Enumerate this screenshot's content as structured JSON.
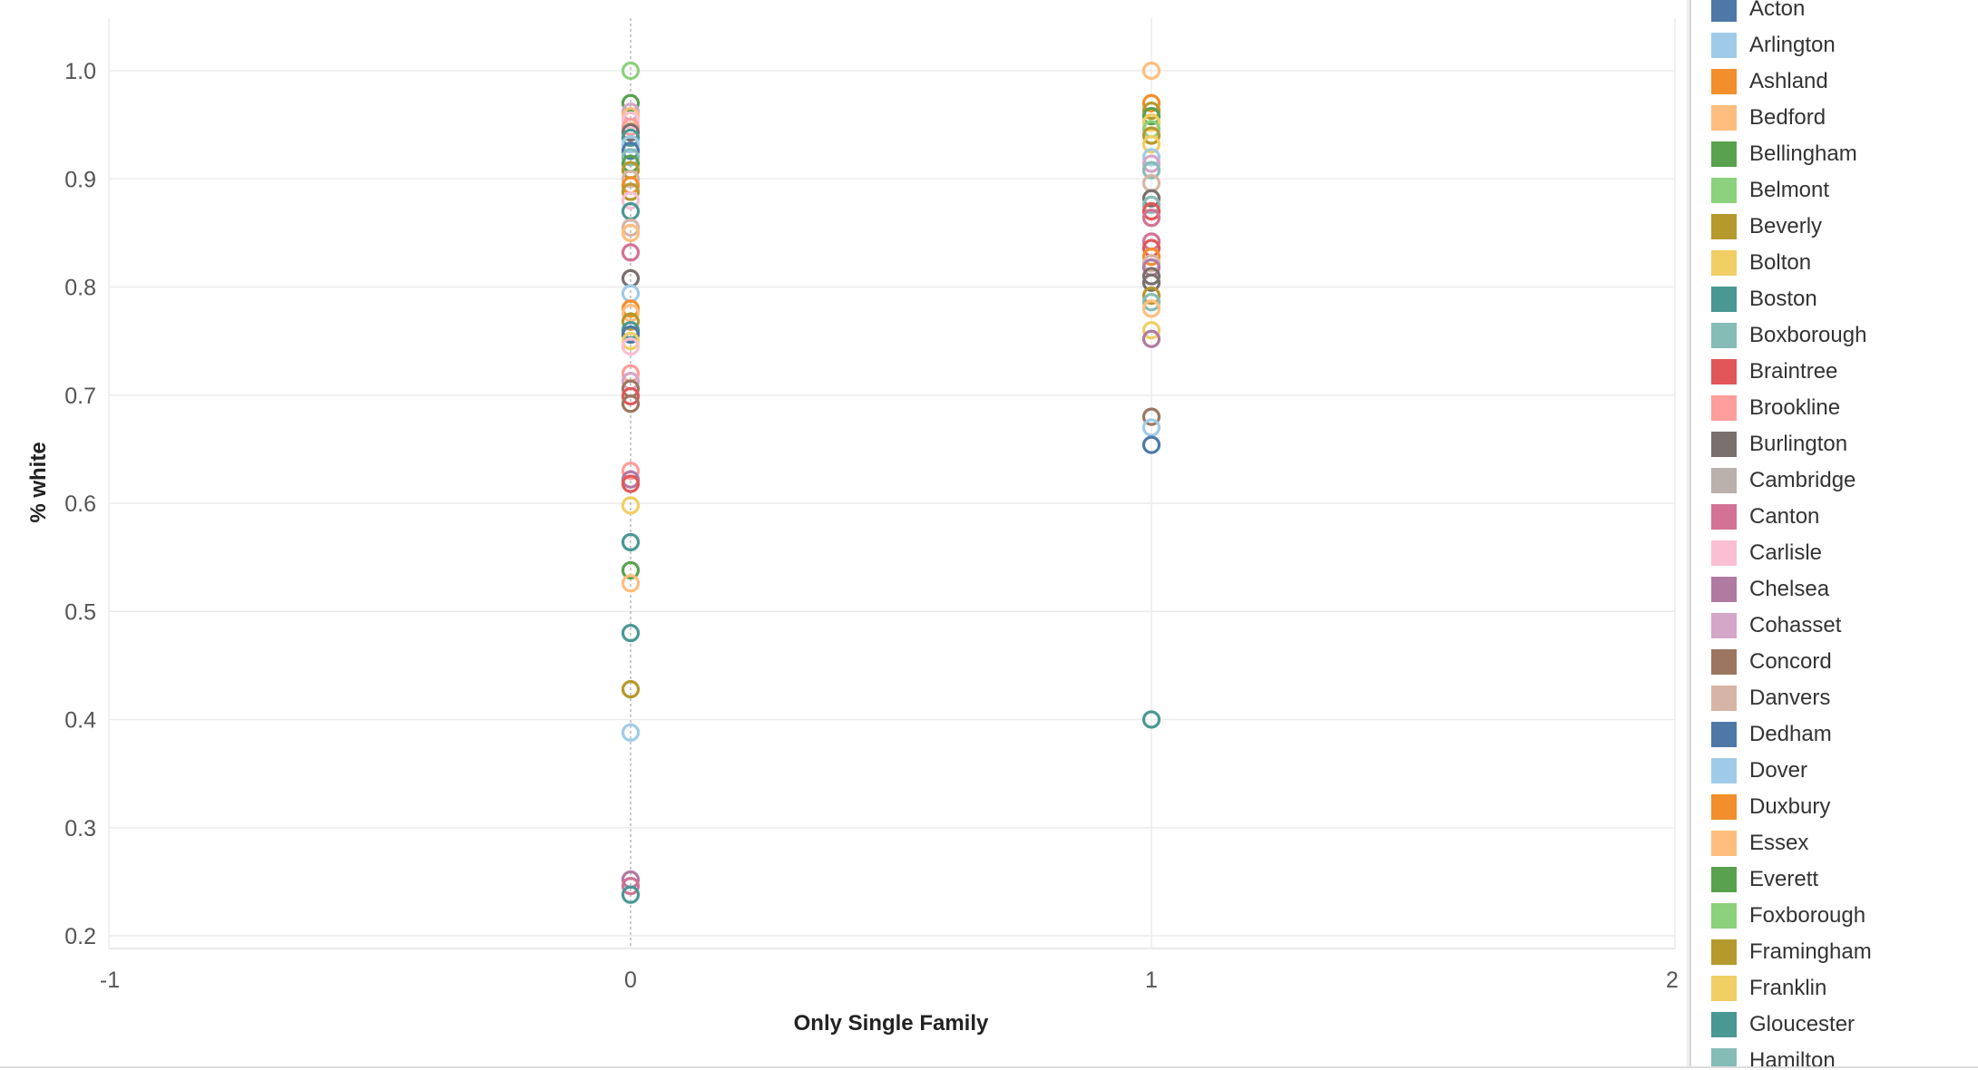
{
  "chart_data": {
    "type": "scatter",
    "xlabel": "Only Single Family",
    "ylabel": "% white",
    "xlim": [
      -1,
      2
    ],
    "ylim": [
      0.2,
      1.04
    ],
    "x_ticks": [
      "-1",
      "0",
      "1",
      "2"
    ],
    "y_ticks": [
      "1.0",
      "0.9",
      "0.8",
      "0.7",
      "0.6",
      "0.5",
      "0.4",
      "0.3",
      "0.2"
    ],
    "grid": true,
    "marker": "hollow-circle",
    "legend_position": "right",
    "legend": [
      {
        "name": "Acton",
        "color": "#4e79a7"
      },
      {
        "name": "Arlington",
        "color": "#a0cbe8"
      },
      {
        "name": "Ashland",
        "color": "#f28e2b"
      },
      {
        "name": "Bedford",
        "color": "#ffbe7d"
      },
      {
        "name": "Bellingham",
        "color": "#59a14f"
      },
      {
        "name": "Belmont",
        "color": "#8cd17d"
      },
      {
        "name": "Beverly",
        "color": "#b6992d"
      },
      {
        "name": "Bolton",
        "color": "#f1ce63"
      },
      {
        "name": "Boston",
        "color": "#499894"
      },
      {
        "name": "Boxborough",
        "color": "#86bcb6"
      },
      {
        "name": "Braintree",
        "color": "#e15759"
      },
      {
        "name": "Brookline",
        "color": "#ff9d9a"
      },
      {
        "name": "Burlington",
        "color": "#79706e"
      },
      {
        "name": "Cambridge",
        "color": "#bab0ac"
      },
      {
        "name": "Canton",
        "color": "#d37295"
      },
      {
        "name": "Carlisle",
        "color": "#fabfd2"
      },
      {
        "name": "Chelsea",
        "color": "#b07aa1"
      },
      {
        "name": "Cohasset",
        "color": "#d4a6c8"
      },
      {
        "name": "Concord",
        "color": "#9d7660"
      },
      {
        "name": "Danvers",
        "color": "#d7b5a6"
      },
      {
        "name": "Dedham",
        "color": "#4e79a7"
      },
      {
        "name": "Dover",
        "color": "#a0cbe8"
      },
      {
        "name": "Duxbury",
        "color": "#f28e2b"
      },
      {
        "name": "Essex",
        "color": "#ffbe7d"
      },
      {
        "name": "Everett",
        "color": "#59a14f"
      },
      {
        "name": "Foxborough",
        "color": "#8cd17d"
      },
      {
        "name": "Framingham",
        "color": "#b6992d"
      },
      {
        "name": "Franklin",
        "color": "#f1ce63"
      },
      {
        "name": "Gloucester",
        "color": "#499894"
      },
      {
        "name": "Hamilton",
        "color": "#86bcb6"
      }
    ],
    "points": [
      {
        "x": 0,
        "y": 1.0,
        "color": "#8cd17d"
      },
      {
        "x": 0,
        "y": 0.97,
        "color": "#59a14f"
      },
      {
        "x": 0,
        "y": 0.962,
        "color": "#d4a6c8"
      },
      {
        "x": 0,
        "y": 0.958,
        "color": "#ffbe7d"
      },
      {
        "x": 0,
        "y": 0.954,
        "color": "#fabfd2"
      },
      {
        "x": 0,
        "y": 0.948,
        "color": "#ff9d9a"
      },
      {
        "x": 0,
        "y": 0.943,
        "color": "#79706e"
      },
      {
        "x": 0,
        "y": 0.938,
        "color": "#499894"
      },
      {
        "x": 0,
        "y": 0.932,
        "color": "#a0cbe8"
      },
      {
        "x": 0,
        "y": 0.926,
        "color": "#4e79a7"
      },
      {
        "x": 0,
        "y": 0.92,
        "color": "#86bcb6"
      },
      {
        "x": 0,
        "y": 0.914,
        "color": "#59a14f"
      },
      {
        "x": 0,
        "y": 0.908,
        "color": "#b6992d"
      },
      {
        "x": 0,
        "y": 0.9,
        "color": "#d7b5a6"
      },
      {
        "x": 0,
        "y": 0.894,
        "color": "#f28e2b"
      },
      {
        "x": 0,
        "y": 0.888,
        "color": "#b6992d"
      },
      {
        "x": 0,
        "y": 0.88,
        "color": "#fabfd2"
      },
      {
        "x": 0,
        "y": 0.87,
        "color": "#499894"
      },
      {
        "x": 0,
        "y": 0.855,
        "color": "#d7b5a6"
      },
      {
        "x": 0,
        "y": 0.85,
        "color": "#ffbe7d"
      },
      {
        "x": 0,
        "y": 0.832,
        "color": "#d37295"
      },
      {
        "x": 0,
        "y": 0.808,
        "color": "#79706e"
      },
      {
        "x": 0,
        "y": 0.794,
        "color": "#a0cbe8"
      },
      {
        "x": 0,
        "y": 0.78,
        "color": "#f28e2b"
      },
      {
        "x": 0,
        "y": 0.776,
        "color": "#ffbe7d"
      },
      {
        "x": 0,
        "y": 0.768,
        "color": "#b6992d"
      },
      {
        "x": 0,
        "y": 0.76,
        "color": "#499894"
      },
      {
        "x": 0,
        "y": 0.756,
        "color": "#4e79a7"
      },
      {
        "x": 0,
        "y": 0.75,
        "color": "#f1ce63"
      },
      {
        "x": 0,
        "y": 0.745,
        "color": "#fabfd2"
      },
      {
        "x": 0,
        "y": 0.72,
        "color": "#ff9d9a"
      },
      {
        "x": 0,
        "y": 0.713,
        "color": "#d4a6c8"
      },
      {
        "x": 0,
        "y": 0.706,
        "color": "#9d7660"
      },
      {
        "x": 0,
        "y": 0.699,
        "color": "#e15759"
      },
      {
        "x": 0,
        "y": 0.692,
        "color": "#9d7660"
      },
      {
        "x": 0,
        "y": 0.63,
        "color": "#ff9d9a"
      },
      {
        "x": 0,
        "y": 0.622,
        "color": "#b07aa1"
      },
      {
        "x": 0,
        "y": 0.618,
        "color": "#e15759"
      },
      {
        "x": 0,
        "y": 0.598,
        "color": "#f1ce63"
      },
      {
        "x": 0,
        "y": 0.564,
        "color": "#499894"
      },
      {
        "x": 0,
        "y": 0.538,
        "color": "#59a14f"
      },
      {
        "x": 0,
        "y": 0.526,
        "color": "#ffbe7d"
      },
      {
        "x": 0,
        "y": 0.48,
        "color": "#499894"
      },
      {
        "x": 0,
        "y": 0.428,
        "color": "#b6992d"
      },
      {
        "x": 0,
        "y": 0.388,
        "color": "#a0cbe8"
      },
      {
        "x": 0,
        "y": 0.252,
        "color": "#b07aa1"
      },
      {
        "x": 0,
        "y": 0.246,
        "color": "#d37295"
      },
      {
        "x": 0,
        "y": 0.238,
        "color": "#499894"
      },
      {
        "x": 1,
        "y": 1.0,
        "color": "#ffbe7d"
      },
      {
        "x": 1,
        "y": 0.97,
        "color": "#f28e2b"
      },
      {
        "x": 1,
        "y": 0.963,
        "color": "#b6992d"
      },
      {
        "x": 1,
        "y": 0.958,
        "color": "#59a14f"
      },
      {
        "x": 1,
        "y": 0.952,
        "color": "#f1ce63"
      },
      {
        "x": 1,
        "y": 0.946,
        "color": "#8cd17d"
      },
      {
        "x": 1,
        "y": 0.94,
        "color": "#b6992d"
      },
      {
        "x": 1,
        "y": 0.932,
        "color": "#f1ce63"
      },
      {
        "x": 1,
        "y": 0.92,
        "color": "#a0cbe8"
      },
      {
        "x": 1,
        "y": 0.914,
        "color": "#d4a6c8"
      },
      {
        "x": 1,
        "y": 0.908,
        "color": "#86bcb6"
      },
      {
        "x": 1,
        "y": 0.896,
        "color": "#d7b5a6"
      },
      {
        "x": 1,
        "y": 0.882,
        "color": "#79706e"
      },
      {
        "x": 1,
        "y": 0.876,
        "color": "#86bcb6"
      },
      {
        "x": 1,
        "y": 0.87,
        "color": "#e15759"
      },
      {
        "x": 1,
        "y": 0.864,
        "color": "#d37295"
      },
      {
        "x": 1,
        "y": 0.842,
        "color": "#d37295"
      },
      {
        "x": 1,
        "y": 0.836,
        "color": "#e15759"
      },
      {
        "x": 1,
        "y": 0.828,
        "color": "#f28e2b"
      },
      {
        "x": 1,
        "y": 0.822,
        "color": "#d7b5a6"
      },
      {
        "x": 1,
        "y": 0.818,
        "color": "#b07aa1"
      },
      {
        "x": 1,
        "y": 0.81,
        "color": "#79706e"
      },
      {
        "x": 1,
        "y": 0.804,
        "color": "#79706e"
      },
      {
        "x": 1,
        "y": 0.792,
        "color": "#b6992d"
      },
      {
        "x": 1,
        "y": 0.786,
        "color": "#86bcb6"
      },
      {
        "x": 1,
        "y": 0.78,
        "color": "#ffbe7d"
      },
      {
        "x": 1,
        "y": 0.76,
        "color": "#f1ce63"
      },
      {
        "x": 1,
        "y": 0.752,
        "color": "#b07aa1"
      },
      {
        "x": 1,
        "y": 0.68,
        "color": "#9d7660"
      },
      {
        "x": 1,
        "y": 0.67,
        "color": "#a0cbe8"
      },
      {
        "x": 1,
        "y": 0.654,
        "color": "#4e79a7"
      },
      {
        "x": 1,
        "y": 0.4,
        "color": "#499894"
      }
    ]
  }
}
